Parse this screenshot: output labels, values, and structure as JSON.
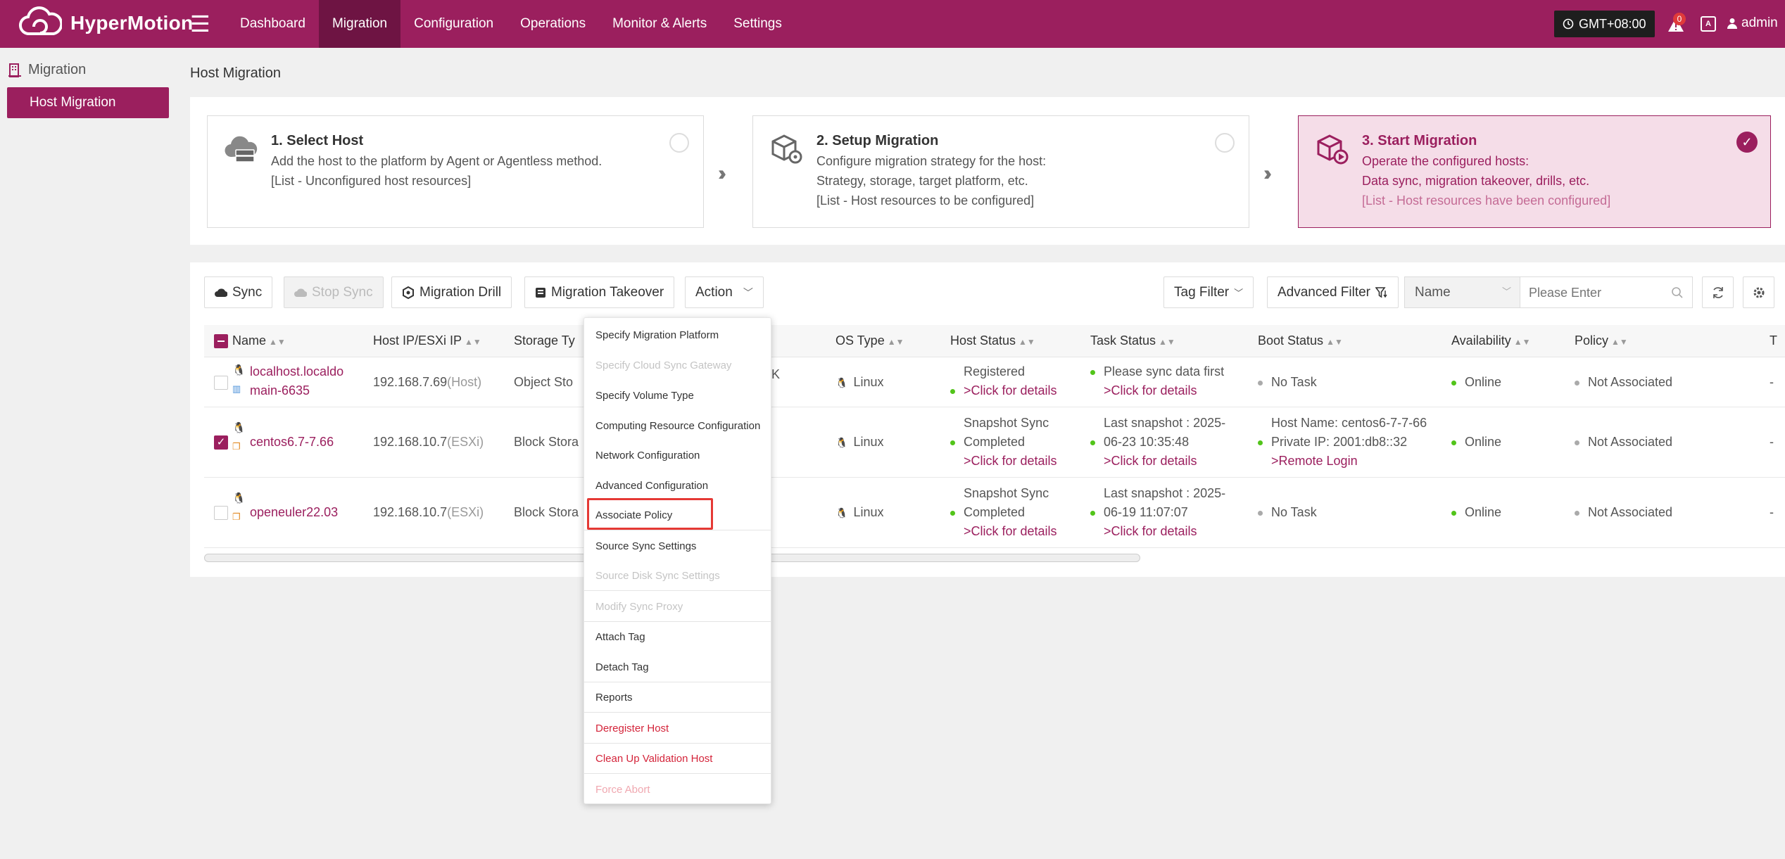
{
  "app": {
    "name": "HyperMotion",
    "logo_icon": "cloud-logo-icon"
  },
  "nav": {
    "items": [
      {
        "label": "Dashboard"
      },
      {
        "label": "Migration",
        "active": true
      },
      {
        "label": "Configuration"
      },
      {
        "label": "Operations"
      },
      {
        "label": "Monitor & Alerts"
      },
      {
        "label": "Settings"
      }
    ]
  },
  "header": {
    "timezone": "GMT+08:00",
    "alert_count": "0",
    "user": "admin"
  },
  "sidebar": {
    "section": "Migration",
    "items": [
      {
        "label": "Host Migration",
        "active": true
      }
    ]
  },
  "page": {
    "title": "Host Migration"
  },
  "steps": [
    {
      "title": "1. Select Host",
      "lines": [
        "Add the host to the platform by Agent or Agentless method.",
        "[List - Unconfigured host resources]"
      ],
      "done": false
    },
    {
      "title": "2. Setup Migration",
      "lines": [
        "Configure migration strategy for the host:",
        "Strategy, storage, target platform, etc.",
        "[List - Host resources to be configured]"
      ],
      "done": false
    },
    {
      "title": "3. Start Migration",
      "lines": [
        "Operate the configured hosts:",
        "Data sync, migration takeover, drills, etc.",
        "[List - Host resources have been configured]"
      ],
      "done": true
    }
  ],
  "toolbar": {
    "sync": "Sync",
    "stop_sync": "Stop Sync",
    "migration_drill": "Migration Drill",
    "migration_takeover": "Migration Takeover",
    "action": "Action",
    "tag_filter": "Tag Filter",
    "advanced_filter": "Advanced Filter",
    "search_field": "Name",
    "search_placeholder": "Please Enter"
  },
  "table": {
    "columns": [
      "Name",
      "Host IP/ESXi IP",
      "Storage Ty",
      "OS Type",
      "Host Status",
      "Task Status",
      "Boot Status",
      "Availability",
      "Policy",
      "T"
    ],
    "rows": [
      {
        "checked": false,
        "name_line1": "localhost.localdo",
        "name_line2": "main-6635",
        "ip": "192.168.7.69",
        "ip_type": "(Host)",
        "storage": "Object Sto",
        "storage_tail": "K",
        "os": "Linux",
        "host_status": [
          "Registered",
          ">Click for details"
        ],
        "task_status": [
          "Please sync data first",
          ">Click for details"
        ],
        "boot_status": [
          "No Task"
        ],
        "availability": "Online",
        "policy": "Not Associated",
        "trailing": "-"
      },
      {
        "checked": true,
        "name_line1": "centos6.7-7.66",
        "ip": "192.168.10.7",
        "ip_type": "(ESXi)",
        "storage": "Block Stora",
        "os": "Linux",
        "host_status": [
          "Snapshot Sync",
          "Completed",
          ">Click for details"
        ],
        "task_status": [
          "Last snapshot : 2025-",
          "06-23 10:35:48",
          ">Click for details"
        ],
        "boot_status": [
          "Host Name: centos6-7-7-66",
          "Private IP: 2001:db8::32",
          ">Remote Login"
        ],
        "availability": "Online",
        "policy": "Not Associated",
        "trailing": "-"
      },
      {
        "checked": false,
        "name_line1": "openeuler22.03",
        "ip": "192.168.10.7",
        "ip_type": "(ESXi)",
        "storage": "Block Stora",
        "os": "Linux",
        "host_status": [
          "Snapshot Sync",
          "Completed",
          ">Click for details"
        ],
        "task_status": [
          "Last snapshot : 2025-",
          "06-19 11:07:07",
          ">Click for details"
        ],
        "boot_status": [
          "No Task"
        ],
        "availability": "Online",
        "policy": "Not Associated",
        "trailing": "-"
      }
    ]
  },
  "action_menu": {
    "items": [
      {
        "label": "Specify Migration Platform",
        "state": "normal"
      },
      {
        "label": "Specify Cloud Sync Gateway",
        "state": "disabled"
      },
      {
        "label": "Specify Volume Type",
        "state": "normal"
      },
      {
        "label": "Computing Resource Configuration",
        "state": "normal"
      },
      {
        "label": "Network Configuration",
        "state": "normal"
      },
      {
        "label": "Advanced Configuration",
        "state": "normal"
      },
      {
        "label": "Associate Policy",
        "state": "normal",
        "highlighted": true
      },
      {
        "label": "Source Sync Settings",
        "state": "normal"
      },
      {
        "label": "Source Disk Sync Settings",
        "state": "disabled"
      },
      {
        "label": "Modify Sync Proxy",
        "state": "disabled"
      },
      {
        "label": "Attach Tag",
        "state": "normal"
      },
      {
        "label": "Detach Tag",
        "state": "normal"
      },
      {
        "label": "Reports",
        "state": "normal"
      },
      {
        "label": "Deregister Host",
        "state": "danger"
      },
      {
        "label": "Clean Up Validation Host",
        "state": "danger"
      },
      {
        "label": "Force Abort",
        "state": "danger-disabled"
      }
    ]
  },
  "colors": {
    "brand": "#9b1f5e",
    "brand_dark": "#6e1443",
    "success": "#52c41a",
    "danger": "#d4243a",
    "highlight_border": "#e53935"
  }
}
